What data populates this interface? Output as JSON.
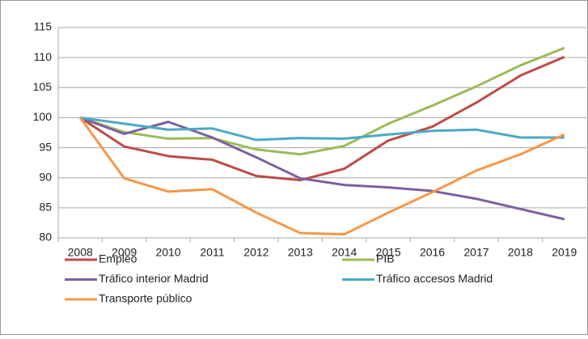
{
  "chart_data": {
    "type": "line",
    "categories": [
      "2008",
      "2009",
      "2010",
      "2011",
      "2012",
      "2013",
      "2014",
      "2015",
      "2016",
      "2017",
      "2018",
      "2019"
    ],
    "series": [
      {
        "name": "Empleo",
        "color": "#be4b48",
        "values": [
          100,
          95.2,
          93.6,
          93.0,
          90.3,
          89.6,
          91.5,
          96.2,
          98.5,
          102.5,
          107.0,
          110.1
        ]
      },
      {
        "name": "PIB",
        "color": "#9bbb59",
        "values": [
          100,
          97.6,
          96.5,
          96.6,
          94.7,
          93.9,
          95.3,
          99.0,
          102.0,
          105.2,
          108.7,
          111.6
        ]
      },
      {
        "name": "Tráfico interior Madrid",
        "color": "#7d5fa0",
        "values": [
          100,
          97.3,
          99.3,
          96.7,
          93.4,
          89.9,
          88.8,
          88.4,
          87.8,
          86.5,
          84.8,
          83.1
        ]
      },
      {
        "name": "Tráfico accesos Madrid",
        "color": "#4aaac5",
        "values": [
          100,
          99.0,
          98.0,
          98.2,
          96.3,
          96.6,
          96.5,
          97.2,
          97.8,
          98.0,
          96.7,
          96.7
        ]
      },
      {
        "name": "Transporte público",
        "color": "#f79646",
        "values": [
          100,
          89.9,
          87.7,
          88.1,
          84.2,
          80.8,
          80.6,
          84.2,
          87.6,
          91.2,
          93.9,
          97.2
        ]
      }
    ],
    "ylim": [
      80,
      115
    ],
    "yticks": [
      80,
      85,
      90,
      95,
      100,
      105,
      110,
      115
    ],
    "grid": true,
    "legend": "bottom"
  }
}
